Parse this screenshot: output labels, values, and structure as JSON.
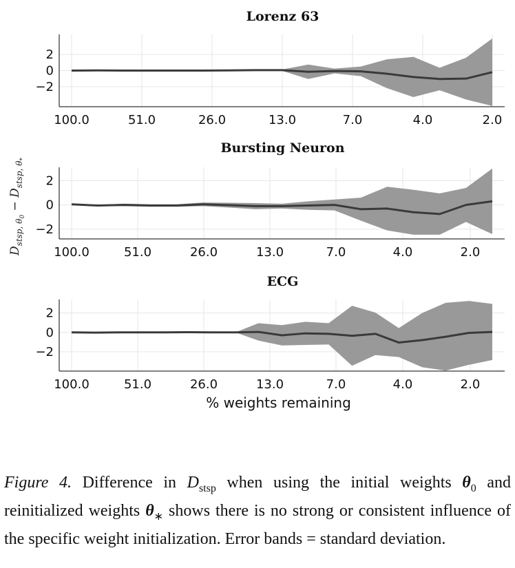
{
  "chart_data": [
    {
      "type": "line",
      "title": "Lorenz 63",
      "xlabel": "",
      "ylabel": "",
      "x_ticks": [
        "100.0",
        "51.0",
        "26.0",
        "13.0",
        "7.0",
        "4.0",
        "2.0"
      ],
      "y_ticks": [
        "2",
        "0",
        "−2"
      ],
      "ylim": [
        -4.5,
        4.5
      ],
      "grid": true,
      "series": [
        {
          "mean": [
            0,
            0.02,
            0,
            0,
            0,
            0,
            0.02,
            0.05,
            0.05,
            -0.15,
            -0.05,
            -0.1,
            -0.4,
            -0.8,
            -1.05,
            -1.0,
            -0.2
          ],
          "std": [
            0,
            0,
            0,
            0,
            0,
            0,
            0,
            0.1,
            0.08,
            0.9,
            0.3,
            0.6,
            1.8,
            2.5,
            1.4,
            2.6,
            4.2
          ]
        }
      ]
    },
    {
      "type": "line",
      "title": "Bursting Neuron",
      "xlabel": "",
      "ylabel": "D_stsp,θ0 − D_stsp,θ*",
      "x_ticks": [
        "100.0",
        "51.0",
        "26.0",
        "13.0",
        "7.0",
        "4.0",
        "2.0"
      ],
      "y_ticks": [
        "2",
        "0",
        "−2"
      ],
      "ylim": [
        -2.8,
        3.1
      ],
      "grid": true,
      "series": [
        {
          "mean": [
            0.05,
            -0.05,
            0,
            -0.05,
            -0.05,
            0.05,
            -0.02,
            -0.1,
            -0.1,
            -0.05,
            0,
            -0.35,
            -0.3,
            -0.6,
            -0.75,
            0,
            0.3
          ],
          "std": [
            0.05,
            0.05,
            0.1,
            0.1,
            0.1,
            0.15,
            0.2,
            0.25,
            0.2,
            0.35,
            0.45,
            0.95,
            1.8,
            1.85,
            1.7,
            1.4,
            2.7
          ]
        }
      ]
    },
    {
      "type": "line",
      "title": "ECG",
      "xlabel": "% weights remaining",
      "ylabel": "",
      "x_ticks": [
        "100.0",
        "51.0",
        "26.0",
        "13.0",
        "7.0",
        "4.0",
        "2.0"
      ],
      "y_ticks": [
        "2",
        "0",
        "−2"
      ],
      "ylim": [
        -4.0,
        3.4
      ],
      "grid": true,
      "series": [
        {
          "mean": [
            0,
            -0.02,
            0,
            0,
            0,
            0.02,
            0,
            0,
            0.05,
            -0.3,
            -0.1,
            -0.15,
            -0.35,
            -0.15,
            -1.05,
            -0.8,
            -0.45,
            -0.05,
            0.05
          ],
          "std": [
            0,
            0,
            0,
            0,
            0,
            0,
            0,
            0,
            0.9,
            1.05,
            1.2,
            1.1,
            3.1,
            2.2,
            1.5,
            2.8,
            3.5,
            3.3,
            2.9
          ]
        }
      ]
    }
  ],
  "caption": {
    "figure_label": "Figure 4.",
    "text_before_math": " Difference in ",
    "math_D": "D",
    "math_D_sub": "stsp",
    "text_mid1": " when using the initial weights ",
    "theta0": "θ",
    "theta0_sub": "0",
    "text_mid2": " and reinitialized weights ",
    "theta_star": "θ",
    "theta_star_sub": "∗",
    "text_end": " shows there is no strong or consistent influence of the specific weight initialization. Error bands = standard deviation."
  },
  "colors": {
    "line": "#3a3a3a",
    "band": "#999999",
    "grid": "#e6e6e6",
    "axis": "#000000"
  }
}
